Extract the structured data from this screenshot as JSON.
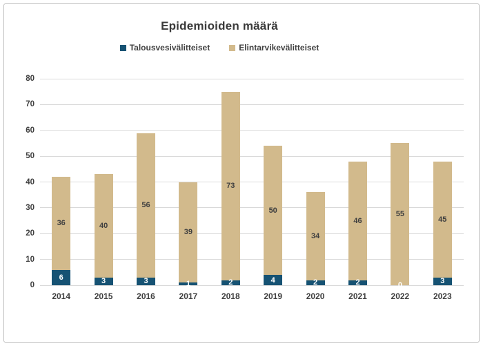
{
  "window": {
    "background_color": "#FFFFFF",
    "border_color": "#BFBFBF"
  },
  "chart_data": {
    "type": "bar",
    "stacked": true,
    "title": "Epidemioiden määrä",
    "categories": [
      "2014",
      "2015",
      "2016",
      "2017",
      "2018",
      "2019",
      "2020",
      "2021",
      "2022",
      "2023"
    ],
    "series": [
      {
        "name": "Talousvesivälitteiset",
        "color": "#165273",
        "label_color": "#FFFFFF",
        "values": [
          6,
          3,
          3,
          1,
          2,
          4,
          2,
          2,
          0,
          3
        ]
      },
      {
        "name": "Elintarvikevälitteiset",
        "color": "#D2BA8C",
        "label_color": "#404040",
        "values": [
          36,
          40,
          56,
          39,
          73,
          50,
          34,
          46,
          55,
          45
        ]
      }
    ],
    "totals": [
      42,
      43,
      59,
      40,
      75,
      54,
      36,
      48,
      55,
      48
    ],
    "xlabel": "",
    "ylabel": "",
    "ylim": [
      0,
      80
    ],
    "yticks": [
      0,
      10,
      20,
      30,
      40,
      50,
      60,
      70,
      80
    ],
    "grid": true,
    "gridline_color": "#D9D9D9",
    "legend_position": "top",
    "data_labels": true
  }
}
